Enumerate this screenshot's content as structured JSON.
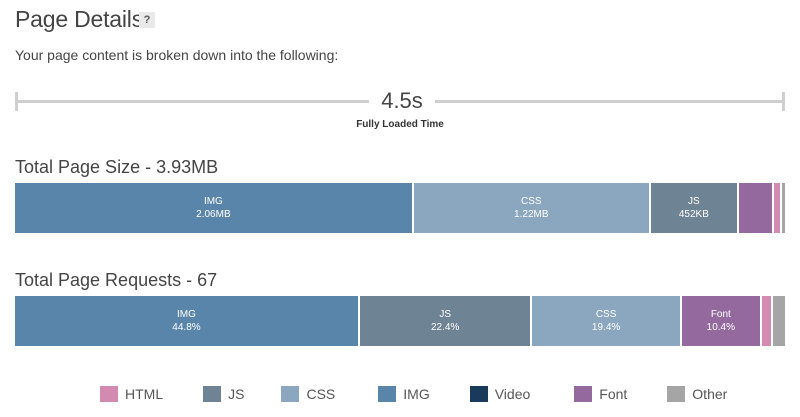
{
  "header": {
    "title": "Page Details",
    "help_icon": "?"
  },
  "intro": "Your page content is broken down into the following:",
  "timeline": {
    "value": "4.5s",
    "caption": "Fully Loaded Time"
  },
  "colors": {
    "HTML": "#d38ab0",
    "JS": "#6e8394",
    "CSS": "#8ba7bf",
    "IMG": "#5a85aa",
    "Video": "#1a3a5c",
    "Font": "#93699e",
    "Other": "#a5a5a5"
  },
  "size": {
    "title": "Total Page Size - 3.93MB",
    "segments": [
      {
        "type": "IMG",
        "label": "IMG",
        "value": "2.06MB",
        "fraction": 0.52
      },
      {
        "type": "CSS",
        "label": "CSS",
        "value": "1.22MB",
        "fraction": 0.309
      },
      {
        "type": "JS",
        "label": "JS",
        "value": "452KB",
        "fraction": 0.115
      },
      {
        "type": "Font",
        "label": "",
        "value": "",
        "fraction": 0.045
      },
      {
        "type": "HTML",
        "label": "",
        "value": "",
        "fraction": 0.011
      },
      {
        "type": "Other",
        "label": "",
        "value": "",
        "fraction": 0.004
      }
    ]
  },
  "requests": {
    "title": "Total Page Requests - 67",
    "segments": [
      {
        "type": "IMG",
        "label": "IMG",
        "value": "44.8%",
        "fraction": 0.448
      },
      {
        "type": "JS",
        "label": "JS",
        "value": "22.4%",
        "fraction": 0.224
      },
      {
        "type": "CSS",
        "label": "CSS",
        "value": "19.4%",
        "fraction": 0.194
      },
      {
        "type": "Font",
        "label": "Font",
        "value": "10.4%",
        "fraction": 0.104
      },
      {
        "type": "HTML",
        "label": "",
        "value": "",
        "fraction": 0.015
      },
      {
        "type": "Other",
        "label": "",
        "value": "",
        "fraction": 0.015
      }
    ]
  },
  "legend": [
    "HTML",
    "JS",
    "CSS",
    "IMG",
    "Video",
    "Font",
    "Other"
  ]
}
